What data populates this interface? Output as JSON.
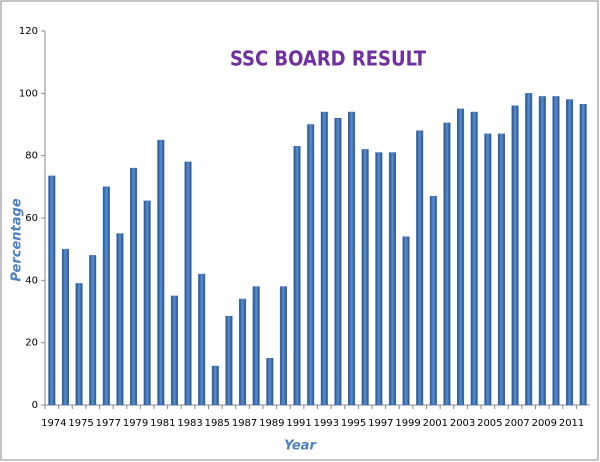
{
  "chart_data": {
    "type": "bar",
    "title": "SSC BOARD RESULT",
    "x_label": "Year",
    "y_label": "Percentage",
    "categories": [
      "1974",
      null,
      "1975",
      null,
      "1977",
      null,
      "1979",
      null,
      "1981",
      null,
      "1983",
      null,
      "1985",
      null,
      "1987",
      null,
      "1989",
      null,
      "1991",
      null,
      "1993",
      null,
      "1995",
      null,
      "1997",
      null,
      "1999",
      null,
      "2001",
      null,
      "2003",
      null,
      "2005",
      null,
      "2007",
      null,
      "2009",
      null,
      "2011",
      null
    ],
    "values": [
      73.5,
      50,
      39,
      48,
      70,
      55,
      76,
      65.5,
      85,
      35,
      78,
      42,
      12.5,
      28.5,
      34,
      38,
      15,
      38,
      83,
      90,
      94,
      92,
      94,
      82,
      81,
      81,
      54,
      88,
      67,
      90.5,
      95,
      94,
      87,
      87,
      96,
      100,
      99,
      99,
      98,
      96.5
    ],
    "color": "#3b6fb2",
    "ylim": [
      0,
      120
    ],
    "yticks": [
      0,
      20,
      40,
      60,
      80,
      100,
      120
    ],
    "grid": false
  }
}
